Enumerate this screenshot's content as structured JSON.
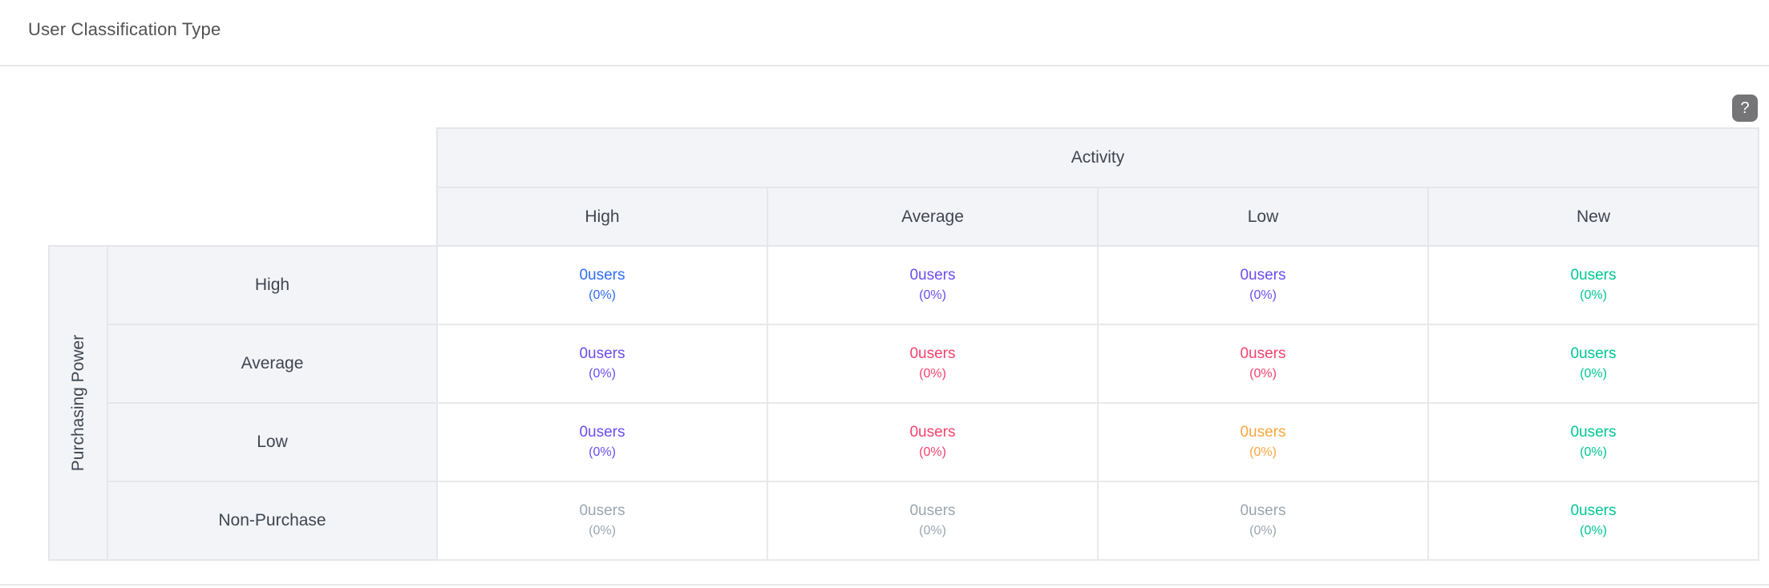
{
  "panel": {
    "title": "User Classification Type"
  },
  "help_button": {
    "label": "?"
  },
  "colors": {
    "blue": "#2f6cf6",
    "purple": "#6b4df1",
    "pink": "#f5426e",
    "orange": "#f9a63e",
    "green": "#00c694",
    "gray": "#9aa5b1",
    "header_bg": "#f3f4f7",
    "border": "#e5e6ea"
  },
  "matrix": {
    "column_group_label": "Activity",
    "row_group_label": "Purchasing Power",
    "columns": [
      "High",
      "Average",
      "Low",
      "New"
    ],
    "rows": [
      {
        "label": "High",
        "cells": [
          {
            "value": "0users",
            "percent": "(0%)",
            "color": "blue"
          },
          {
            "value": "0users",
            "percent": "(0%)",
            "color": "purple"
          },
          {
            "value": "0users",
            "percent": "(0%)",
            "color": "purple"
          },
          {
            "value": "0users",
            "percent": "(0%)",
            "color": "green"
          }
        ]
      },
      {
        "label": "Average",
        "cells": [
          {
            "value": "0users",
            "percent": "(0%)",
            "color": "purple"
          },
          {
            "value": "0users",
            "percent": "(0%)",
            "color": "pink"
          },
          {
            "value": "0users",
            "percent": "(0%)",
            "color": "pink"
          },
          {
            "value": "0users",
            "percent": "(0%)",
            "color": "green"
          }
        ]
      },
      {
        "label": "Low",
        "cells": [
          {
            "value": "0users",
            "percent": "(0%)",
            "color": "purple"
          },
          {
            "value": "0users",
            "percent": "(0%)",
            "color": "pink"
          },
          {
            "value": "0users",
            "percent": "(0%)",
            "color": "orange"
          },
          {
            "value": "0users",
            "percent": "(0%)",
            "color": "green"
          }
        ]
      },
      {
        "label": "Non-Purchase",
        "cells": [
          {
            "value": "0users",
            "percent": "(0%)",
            "color": "gray"
          },
          {
            "value": "0users",
            "percent": "(0%)",
            "color": "gray"
          },
          {
            "value": "0users",
            "percent": "(0%)",
            "color": "gray"
          },
          {
            "value": "0users",
            "percent": "(0%)",
            "color": "green"
          }
        ]
      }
    ]
  }
}
